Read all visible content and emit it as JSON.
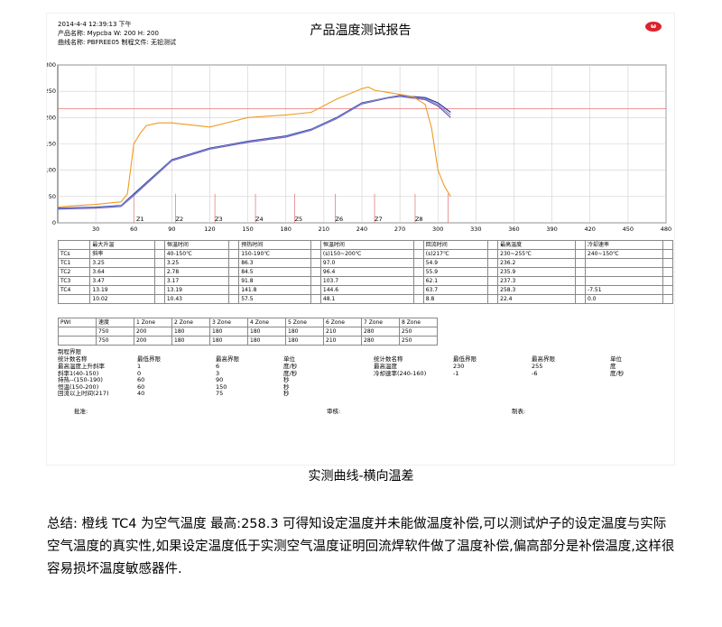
{
  "report": {
    "datetime": "2014-4-4 12:39:13 下午",
    "product_line": "产品名称: Mypcba  W: 200 H: 200",
    "curve_line": "曲线名称: PBFREE05  制程文件: 无铅测试",
    "title": "产品温度测试报告",
    "logo_text": "ω"
  },
  "chart_data": {
    "type": "line",
    "xlim": [
      0,
      480
    ],
    "ylim": [
      0,
      300
    ],
    "x_ticks": [
      30,
      60,
      90,
      120,
      150,
      180,
      210,
      240,
      270,
      300,
      330,
      360,
      390,
      420,
      450,
      480
    ],
    "y_ticks": [
      0,
      50,
      100,
      150,
      200,
      250,
      300
    ],
    "x_tick_labels": [
      "30",
      "60",
      "90",
      "120",
      "150",
      "180",
      "210",
      "240",
      "270",
      "300",
      "330",
      "360",
      "390",
      "420",
      "450",
      "480"
    ],
    "y_tick_labels": [
      "0",
      "50",
      "100",
      "150",
      "200",
      "250",
      "300"
    ],
    "zone_labels": [
      {
        "label": "Z1",
        "x": 62
      },
      {
        "label": "Z2",
        "x": 93
      },
      {
        "label": "Z3",
        "x": 124
      },
      {
        "label": "Z4",
        "x": 156
      },
      {
        "label": "Z5",
        "x": 187
      },
      {
        "label": "Z6",
        "x": 219
      },
      {
        "label": "Z7",
        "x": 250
      },
      {
        "label": "Z8",
        "x": 282
      }
    ],
    "zone_markers": [
      60,
      93,
      124,
      156,
      187,
      219,
      250,
      282,
      308
    ],
    "reference_line": 217,
    "series": [
      {
        "name": "TC1",
        "color": "#2e2e8f",
        "x": [
          0,
          30,
          50,
          60,
          90,
          120,
          150,
          180,
          200,
          220,
          240,
          260,
          270,
          290,
          300,
          310
        ],
        "y": [
          28,
          30,
          33,
          55,
          120,
          142,
          155,
          165,
          178,
          200,
          228,
          238,
          242,
          238,
          228,
          210
        ]
      },
      {
        "name": "TC2",
        "color": "#7c3fa8",
        "x": [
          0,
          30,
          50,
          60,
          90,
          120,
          150,
          180,
          200,
          220,
          240,
          260,
          270,
          290,
          300,
          310
        ],
        "y": [
          26,
          28,
          31,
          52,
          118,
          140,
          153,
          163,
          176,
          198,
          226,
          237,
          240,
          234,
          222,
          200
        ]
      },
      {
        "name": "TC3",
        "color": "#6f8fd8",
        "x": [
          0,
          30,
          50,
          60,
          90,
          120,
          150,
          180,
          200,
          220,
          240,
          260,
          270,
          290,
          300,
          310
        ],
        "y": [
          27,
          29,
          32,
          53,
          119,
          141,
          154,
          164,
          177,
          199,
          227,
          238,
          241,
          236,
          225,
          205
        ]
      },
      {
        "name": "TC4",
        "color": "#ee9b22",
        "x": [
          0,
          10,
          30,
          50,
          55,
          60,
          65,
          70,
          80,
          90,
          120,
          150,
          180,
          200,
          220,
          240,
          245,
          250,
          260,
          280,
          290,
          295,
          300,
          305,
          310
        ],
        "y": [
          30,
          32,
          35,
          40,
          55,
          150,
          170,
          185,
          190,
          190,
          182,
          200,
          205,
          210,
          235,
          255,
          258,
          252,
          248,
          240,
          225,
          180,
          100,
          70,
          50
        ]
      }
    ]
  },
  "stats": {
    "header_row1": [
      "",
      "最大升温",
      "",
      "恒温时间",
      "",
      "预热时间",
      "",
      "恒温时间",
      "",
      "回流时间",
      "",
      "最高温度",
      "",
      "冷却速率",
      ""
    ],
    "header_row2": [
      "TCs",
      "斜率",
      "",
      "40-150℃",
      "",
      "150-190℃",
      "",
      "(s)150~200℃",
      "",
      "(s)217℃",
      "",
      "230~255℃",
      "",
      "240~150℃",
      ""
    ],
    "rows": [
      [
        "TC1",
        "3.25",
        "",
        "3.25",
        "",
        "86.3",
        "",
        "97.0",
        "",
        "54.9",
        "",
        "236.2",
        "",
        "",
        ""
      ],
      [
        "TC2",
        "3.64",
        "",
        "2.78",
        "",
        "84.5",
        "",
        "96.4",
        "",
        "55.9",
        "",
        "235.9",
        "",
        "",
        ""
      ],
      [
        "TC3",
        "3.47",
        "",
        "3.17",
        "",
        "91.8",
        "",
        "103.7",
        "",
        "62.1",
        "",
        "237.3",
        "",
        "",
        ""
      ],
      [
        "TC4",
        "13.19",
        "",
        "13.19",
        "",
        "141.8",
        "",
        "144.6",
        "",
        "63.7",
        "",
        "258.3",
        "",
        "-7.51",
        ""
      ],
      [
        "",
        "10.02",
        "",
        "10.43",
        "",
        "57.5",
        "",
        "48.1",
        "",
        "8.8",
        "",
        "22.4",
        "",
        "0.0",
        ""
      ]
    ]
  },
  "zones": {
    "header": [
      "PWI",
      "速度",
      "1 Zone",
      "2 Zone",
      "3 Zone",
      "4 Zone",
      "5 Zone",
      "6 Zone",
      "7 Zone",
      "8 Zone"
    ],
    "row1": [
      "",
      "750",
      "200",
      "180",
      "180",
      "180",
      "180",
      "210",
      "280",
      "250"
    ],
    "row2": [
      "",
      "750",
      "200",
      "180",
      "180",
      "180",
      "180",
      "210",
      "280",
      "250"
    ]
  },
  "limits": {
    "section_title": "制程界限",
    "col_heads_left": [
      "统计数名称",
      "最低界限",
      "最高界限",
      "单位"
    ],
    "rows_left": [
      [
        "最高温度上升斜率",
        "1",
        "6",
        "度/秒"
      ],
      [
        "斜率1(40-150)",
        "0",
        "3",
        "度/秒"
      ],
      [
        "持热--(150-190)",
        "60",
        "90",
        "秒"
      ],
      [
        "恒温(150-200)",
        "60",
        "150",
        "秒"
      ],
      [
        "回流以上时间(217)",
        "40",
        "75",
        "秒"
      ]
    ],
    "col_heads_right": [
      "统计数名称",
      "最低界限",
      "最高界限",
      "单位"
    ],
    "rows_right": [
      [
        "最高温度",
        "230",
        "255",
        "度"
      ],
      [
        "冷却速率(240-160)",
        "-1",
        "-6",
        "度/秒"
      ]
    ],
    "sign_approve": "批准:",
    "sign_review": "审核:",
    "sign_make": "制表:"
  },
  "caption": "实测曲线-横向温差",
  "summary": "总结: 橙线 TC4 为空气温度 最高:258.3 可得知设定温度并未能做温度补偿,可以测试炉子的设定温度与实际空气温度的真实性,如果设定温度低于实测空气温度证明回流焊软件做了温度补偿,偏高部分是补偿温度,这样很容易损坏温度敏感器件."
}
